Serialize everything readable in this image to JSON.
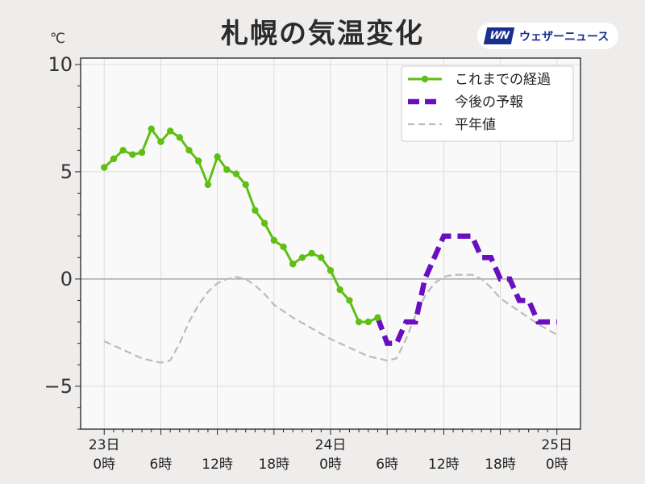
{
  "title": "札幌の気温変化",
  "unit": "℃",
  "brand": {
    "logo_text": "WN",
    "name": "ウェザーニュース",
    "color": "#1b2f8f"
  },
  "legend": {
    "placement": "top-right",
    "items": [
      {
        "label": "これまでの経過",
        "color": "#5fbf12",
        "style": "solid-marker"
      },
      {
        "label": "今後の予報",
        "color": "#6a0fbf",
        "style": "dashed-thick"
      },
      {
        "label": "平年値",
        "color": "#bbbbbb",
        "style": "dashed-thin"
      }
    ]
  },
  "chart_data": {
    "type": "line",
    "title": "札幌の気温変化",
    "ylabel": "℃",
    "xlim": [
      -2.5,
      50.5
    ],
    "ylim": [
      -7,
      10.3
    ],
    "y_major_ticks": [
      10,
      5,
      0,
      -5
    ],
    "y_tick_labels": [
      "10",
      "5",
      "0",
      "−5"
    ],
    "zero_line": true,
    "grid": true,
    "x_ticks": [
      {
        "x": 0,
        "line1": "23日",
        "line2": "0時"
      },
      {
        "x": 6,
        "line1": "",
        "line2": "6時"
      },
      {
        "x": 12,
        "line1": "",
        "line2": "12時"
      },
      {
        "x": 18,
        "line1": "",
        "line2": "18時"
      },
      {
        "x": 24,
        "line1": "24日",
        "line2": "0時"
      },
      {
        "x": 30,
        "line1": "",
        "line2": "6時"
      },
      {
        "x": 36,
        "line1": "",
        "line2": "12時"
      },
      {
        "x": 42,
        "line1": "",
        "line2": "18時"
      },
      {
        "x": 48,
        "line1": "25日",
        "line2": "0時"
      }
    ],
    "series": [
      {
        "name": "これまでの経過",
        "color": "#5fbf12",
        "x": [
          0,
          1,
          2,
          3,
          4,
          5,
          6,
          7,
          8,
          9,
          10,
          11,
          12,
          13,
          14,
          15,
          16,
          17,
          18,
          19,
          20,
          21,
          22,
          23,
          24,
          25,
          26,
          27,
          28,
          29
        ],
        "y": [
          5.2,
          5.6,
          6.0,
          5.8,
          5.9,
          7.0,
          6.4,
          6.9,
          6.6,
          6.0,
          5.5,
          4.4,
          5.7,
          5.1,
          4.9,
          4.4,
          3.2,
          2.6,
          1.8,
          1.5,
          0.7,
          1.0,
          1.2,
          1.0,
          0.4,
          -0.5,
          -1.0,
          -2.0,
          -2.0,
          -1.8
        ]
      },
      {
        "name": "今後の予報",
        "color": "#6a0fbf",
        "x": [
          29,
          30,
          31,
          32,
          33,
          34,
          35,
          36,
          37,
          38,
          39,
          40,
          41,
          42,
          43,
          44,
          45,
          46,
          47,
          48
        ],
        "y": [
          -1.8,
          -3.0,
          -3.0,
          -2.0,
          -2.0,
          0.0,
          1.0,
          2.0,
          2.0,
          2.0,
          2.0,
          1.0,
          1.0,
          0.0,
          0.0,
          -1.0,
          -1.0,
          -2.0,
          -2.0,
          -2.0
        ]
      },
      {
        "name": "平年値",
        "color": "#bbbbbb",
        "x": [
          0,
          2,
          4,
          6,
          7,
          8,
          9,
          10,
          11,
          12,
          13,
          14,
          15,
          16,
          17,
          18,
          20,
          22,
          24,
          26,
          28,
          30,
          31,
          32,
          33,
          34,
          35,
          36,
          37,
          38,
          39,
          40,
          41,
          42,
          44,
          46,
          48
        ],
        "y": [
          -2.9,
          -3.3,
          -3.7,
          -3.9,
          -3.8,
          -3.0,
          -2.0,
          -1.2,
          -0.6,
          -0.2,
          0.0,
          0.1,
          0.0,
          -0.3,
          -0.7,
          -1.2,
          -1.8,
          -2.3,
          -2.8,
          -3.2,
          -3.6,
          -3.8,
          -3.7,
          -2.8,
          -1.7,
          -0.8,
          -0.2,
          0.1,
          0.2,
          0.2,
          0.2,
          0.0,
          -0.4,
          -0.9,
          -1.5,
          -2.1,
          -2.6
        ]
      }
    ]
  }
}
